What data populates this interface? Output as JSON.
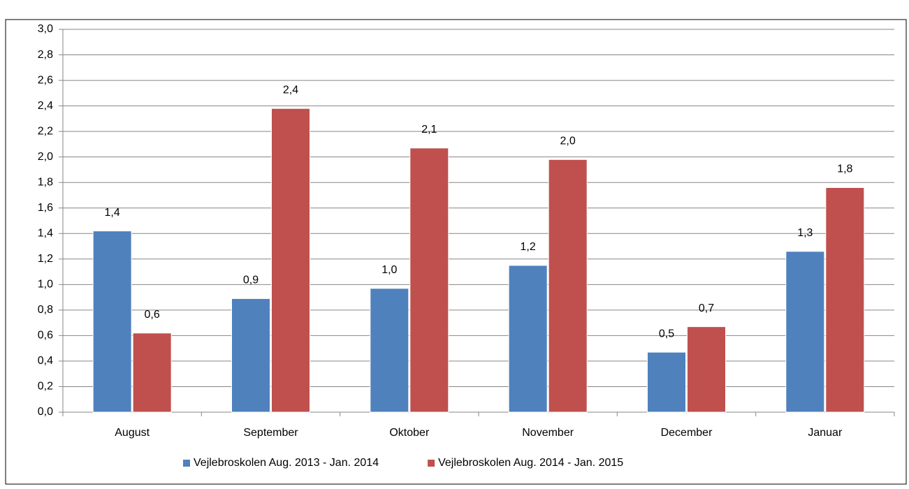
{
  "chart_data": {
    "type": "bar",
    "categories": [
      "August",
      "September",
      "Oktober",
      "November",
      "December",
      "Januar"
    ],
    "series": [
      {
        "name": "Vejlebroskolen Aug. 2013 - Jan. 2014",
        "color": "#4f81bd",
        "values": [
          1.42,
          0.89,
          0.97,
          1.15,
          0.47,
          1.26
        ],
        "value_labels": [
          "1,4",
          "0,9",
          "1,0",
          "1,2",
          "0,5",
          "1,3"
        ]
      },
      {
        "name": "Vejlebroskolen Aug. 2014 - Jan. 2015",
        "color": "#c0504d",
        "values": [
          0.62,
          2.38,
          2.07,
          1.98,
          0.67,
          1.76
        ],
        "value_labels": [
          "0,6",
          "2,4",
          "2,1",
          "2,0",
          "0,7",
          "1,8"
        ]
      }
    ],
    "ylim": [
      0,
      3.0
    ],
    "yticks": [
      {
        "value": 0,
        "label": "0,0"
      },
      {
        "value": 0.2,
        "label": "0,2"
      },
      {
        "value": 0.4,
        "label": "0,4"
      },
      {
        "value": 0.6,
        "label": "0,6"
      },
      {
        "value": 0.8,
        "label": "0,8"
      },
      {
        "value": 1.0,
        "label": "1,0"
      },
      {
        "value": 1.2,
        "label": "1,2"
      },
      {
        "value": 1.4,
        "label": "1,4"
      },
      {
        "value": 1.6,
        "label": "1,6"
      },
      {
        "value": 1.8,
        "label": "1,8"
      },
      {
        "value": 2.0,
        "label": "2,0"
      },
      {
        "value": 2.2,
        "label": "2,2"
      },
      {
        "value": 2.4,
        "label": "2,4"
      },
      {
        "value": 2.6,
        "label": "2,6"
      },
      {
        "value": 2.8,
        "label": "2,8"
      },
      {
        "value": 3.0,
        "label": "3,0"
      }
    ],
    "grid": true,
    "legend": "bottom"
  }
}
